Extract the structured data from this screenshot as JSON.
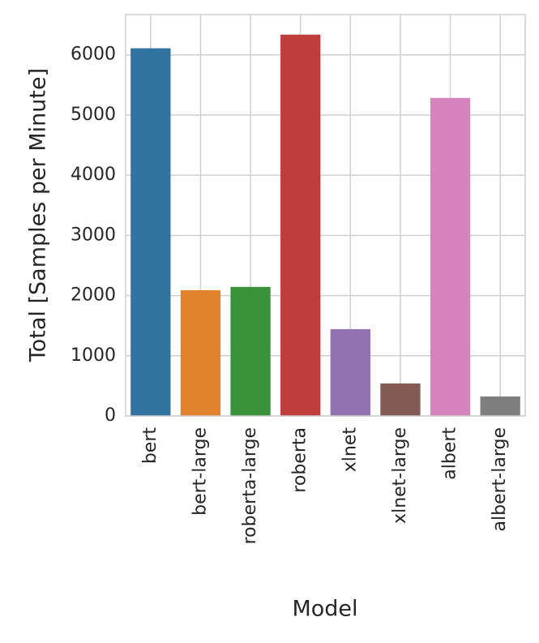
{
  "chart_data": {
    "type": "bar",
    "x_label": "Model",
    "y_label": "Total [Samples per Minute]",
    "categories": [
      "bert",
      "bert-large",
      "roberta-large",
      "roberta",
      "xlnet",
      "xlnet-large",
      "albert",
      "albert-large"
    ],
    "values": [
      6110,
      2090,
      2145,
      6337,
      1443,
      540,
      5285,
      324
    ],
    "colors": [
      "#3274a1",
      "#e1812c",
      "#3a923a",
      "#c03d3e",
      "#9372b2",
      "#845b53",
      "#d684bd",
      "#7f7f7f"
    ],
    "ylim": [
      0,
      6670
    ],
    "yticks": [
      0,
      1000,
      2000,
      3000,
      4000,
      5000,
      6000
    ],
    "grid": true
  }
}
